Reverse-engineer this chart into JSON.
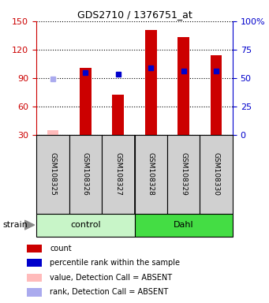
{
  "title": "GDS2710 / 1376751_at",
  "samples": [
    "GSM108325",
    "GSM108326",
    "GSM108327",
    "GSM108328",
    "GSM108329",
    "GSM108330"
  ],
  "groups": [
    "control",
    "control",
    "control",
    "Dahl",
    "Dahl",
    "Dahl"
  ],
  "red_values": [
    null,
    101,
    72,
    141,
    133,
    114
  ],
  "red_absent_values": [
    35,
    null,
    null,
    null,
    null,
    null
  ],
  "blue_values": [
    null,
    96,
    94,
    101,
    97,
    97
  ],
  "blue_absent_values": [
    89,
    null,
    null,
    null,
    null,
    null
  ],
  "ylim_left": [
    30,
    150
  ],
  "ylim_right": [
    0,
    100
  ],
  "left_ticks": [
    30,
    60,
    90,
    120,
    150
  ],
  "right_ticks": [
    0,
    25,
    50,
    75,
    100
  ],
  "right_tick_labels": [
    "0",
    "25",
    "50",
    "75",
    "100%"
  ],
  "left_tick_labels": [
    "30",
    "60",
    "90",
    "120",
    "150"
  ],
  "bar_width": 0.35,
  "background_control": "#c8f5c8",
  "background_dahl": "#44dd44",
  "legend_items": [
    [
      "#cc0000",
      "count"
    ],
    [
      "#0000cc",
      "percentile rank within the sample"
    ],
    [
      "#ffbbbb",
      "value, Detection Call = ABSENT"
    ],
    [
      "#aaaaee",
      "rank, Detection Call = ABSENT"
    ]
  ]
}
